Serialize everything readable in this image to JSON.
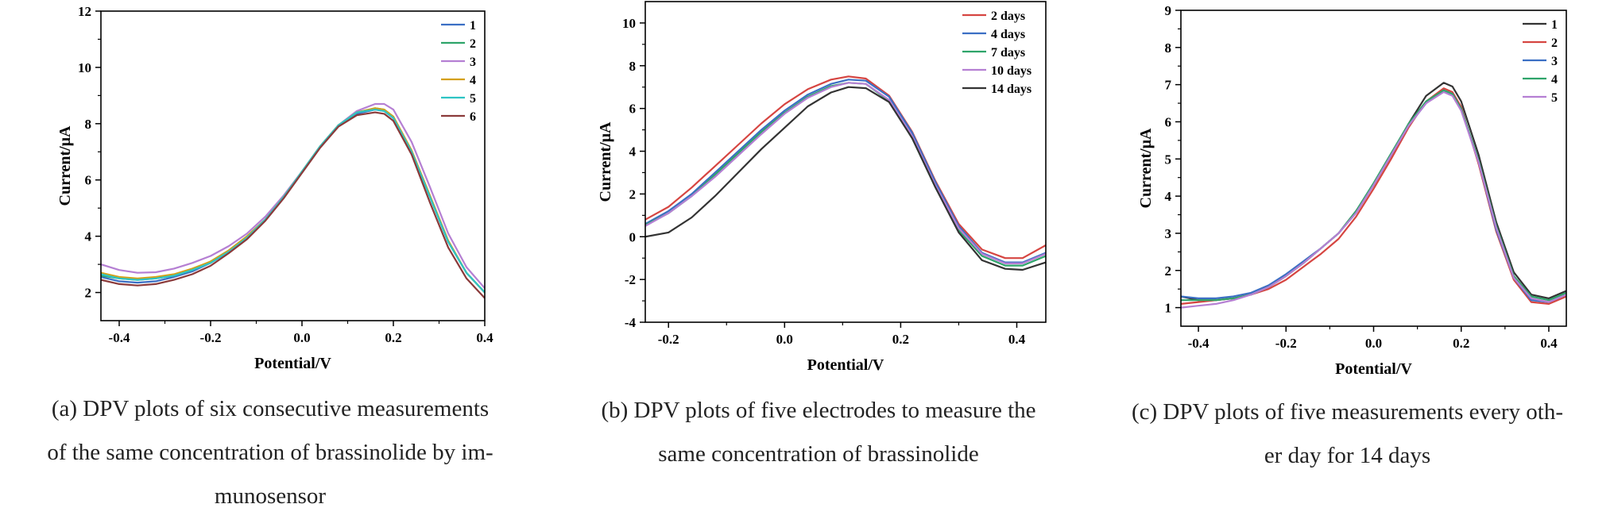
{
  "captions": [
    "(a) DPV plots of six consecutive measurements of the same concentration of brassinolide by immunosensor",
    "(b) DPV plots of five electrodes to measure the same concentration of brassinolide",
    "(c) DPV plots of five measurements every other day for 14 days"
  ],
  "caption_lines": [
    [
      "(a) DPV plots of six consecutive measurements",
      "of the same concentration of brassinolide by im-",
      "munosensor"
    ],
    [
      "(b) DPV plots of five electrodes to measure the",
      "same concentration of brassinolide"
    ],
    [
      "(c) DPV plots of five measurements every oth-",
      "er day for 14 days"
    ]
  ],
  "chart_data": [
    {
      "type": "line",
      "xlabel": "Potential/V",
      "ylabel": "Current/μA",
      "xlim": [
        -0.44,
        0.4
      ],
      "ylim": [
        1,
        12
      ],
      "xticks": [
        -0.4,
        -0.2,
        0.0,
        0.2,
        0.4
      ],
      "xtick_labels": [
        "-0.4",
        "-0.2",
        "0.0",
        "0.2",
        "0.4"
      ],
      "yticks": [
        2,
        4,
        6,
        8,
        10,
        12
      ],
      "ytick_labels": [
        "2",
        "4",
        "6",
        "8",
        "10",
        "12"
      ],
      "legend_position": "top-right",
      "x": [
        -0.44,
        -0.4,
        -0.36,
        -0.32,
        -0.28,
        -0.24,
        -0.2,
        -0.16,
        -0.12,
        -0.08,
        -0.04,
        0.0,
        0.04,
        0.08,
        0.12,
        0.16,
        0.18,
        0.2,
        0.24,
        0.28,
        0.32,
        0.36,
        0.4
      ],
      "series": [
        {
          "name": "1",
          "color": "#3b6fc4",
          "values": [
            2.55,
            2.4,
            2.35,
            2.4,
            2.55,
            2.75,
            3.05,
            3.45,
            3.95,
            4.6,
            5.4,
            6.3,
            7.2,
            7.95,
            8.35,
            8.5,
            8.45,
            8.2,
            7.0,
            5.4,
            3.8,
            2.7,
            2.0
          ]
        },
        {
          "name": "2",
          "color": "#2ea46a",
          "values": [
            2.6,
            2.5,
            2.45,
            2.5,
            2.6,
            2.8,
            3.1,
            3.5,
            4.0,
            4.6,
            5.4,
            6.3,
            7.2,
            7.95,
            8.4,
            8.55,
            8.5,
            8.25,
            7.0,
            5.4,
            3.8,
            2.7,
            2.0
          ]
        },
        {
          "name": "3",
          "color": "#b57fd3",
          "values": [
            3.0,
            2.8,
            2.7,
            2.72,
            2.85,
            3.05,
            3.3,
            3.65,
            4.1,
            4.7,
            5.45,
            6.3,
            7.2,
            7.95,
            8.45,
            8.7,
            8.7,
            8.5,
            7.35,
            5.75,
            4.1,
            2.9,
            2.15
          ]
        },
        {
          "name": "4",
          "color": "#d4a017",
          "values": [
            2.7,
            2.55,
            2.5,
            2.55,
            2.65,
            2.85,
            3.1,
            3.5,
            4.0,
            4.6,
            5.4,
            6.3,
            7.2,
            7.95,
            8.4,
            8.55,
            8.5,
            8.25,
            7.05,
            5.45,
            3.85,
            2.7,
            2.0
          ]
        },
        {
          "name": "5",
          "color": "#2ec4c4",
          "values": [
            2.65,
            2.5,
            2.45,
            2.5,
            2.6,
            2.8,
            3.05,
            3.45,
            3.95,
            4.6,
            5.4,
            6.3,
            7.2,
            7.95,
            8.4,
            8.5,
            8.45,
            8.2,
            7.0,
            5.4,
            3.8,
            2.7,
            2.0
          ]
        },
        {
          "name": "6",
          "color": "#8b3a3a",
          "values": [
            2.45,
            2.3,
            2.25,
            2.3,
            2.45,
            2.65,
            2.95,
            3.4,
            3.9,
            4.55,
            5.35,
            6.25,
            7.15,
            7.9,
            8.3,
            8.4,
            8.35,
            8.1,
            6.9,
            5.2,
            3.6,
            2.5,
            1.8
          ]
        }
      ]
    },
    {
      "type": "line",
      "xlabel": "Potential/V",
      "ylabel": "Current/μA",
      "xlim": [
        -0.24,
        0.45
      ],
      "ylim": [
        -4,
        11
      ],
      "xticks": [
        -0.2,
        0.0,
        0.2,
        0.4
      ],
      "xtick_labels": [
        "-0.2",
        "0.0",
        "0.2",
        "0.4"
      ],
      "yticks": [
        -4,
        -2,
        0,
        2,
        4,
        6,
        8,
        10
      ],
      "ytick_labels": [
        "-4",
        "-2",
        "0",
        "2",
        "4",
        "6",
        "8",
        "10"
      ],
      "legend_position": "top-right",
      "x": [
        -0.24,
        -0.2,
        -0.16,
        -0.12,
        -0.08,
        -0.04,
        0.0,
        0.04,
        0.08,
        0.11,
        0.14,
        0.18,
        0.22,
        0.26,
        0.3,
        0.34,
        0.38,
        0.41,
        0.45
      ],
      "series": [
        {
          "name": "2 days",
          "color": "#d64541",
          "values": [
            0.8,
            1.4,
            2.3,
            3.3,
            4.3,
            5.3,
            6.2,
            6.9,
            7.35,
            7.5,
            7.4,
            6.6,
            4.9,
            2.6,
            0.6,
            -0.6,
            -1.0,
            -1.0,
            -0.4
          ]
        },
        {
          "name": "4 days",
          "color": "#3b6fc4",
          "values": [
            0.6,
            1.2,
            2.0,
            3.0,
            4.0,
            5.0,
            5.9,
            6.65,
            7.15,
            7.35,
            7.3,
            6.55,
            4.85,
            2.55,
            0.5,
            -0.75,
            -1.2,
            -1.2,
            -0.75
          ]
        },
        {
          "name": "7 days",
          "color": "#2ea46a",
          "values": [
            0.55,
            1.1,
            1.9,
            2.9,
            3.9,
            4.9,
            5.8,
            6.55,
            7.05,
            7.2,
            7.15,
            6.35,
            4.6,
            2.3,
            0.3,
            -0.9,
            -1.35,
            -1.35,
            -0.9
          ]
        },
        {
          "name": "10 days",
          "color": "#b57fd3",
          "values": [
            0.5,
            1.1,
            1.9,
            2.8,
            3.8,
            4.8,
            5.75,
            6.5,
            7.0,
            7.2,
            7.15,
            6.4,
            4.7,
            2.4,
            0.4,
            -0.8,
            -1.25,
            -1.25,
            -0.8
          ]
        },
        {
          "name": "14 days",
          "color": "#333333",
          "values": [
            0.0,
            0.2,
            0.9,
            1.9,
            3.0,
            4.1,
            5.1,
            6.1,
            6.75,
            7.0,
            6.95,
            6.3,
            4.6,
            2.3,
            0.2,
            -1.1,
            -1.5,
            -1.55,
            -1.2
          ]
        }
      ]
    },
    {
      "type": "line",
      "xlabel": "Potential/V",
      "ylabel": "Current/μA",
      "xlim": [
        -0.44,
        0.44
      ],
      "ylim": [
        0.5,
        9
      ],
      "xticks": [
        -0.4,
        -0.2,
        0.0,
        0.2,
        0.4
      ],
      "xtick_labels": [
        "-0.4",
        "-0.2",
        "0.0",
        "0.2",
        "0.4"
      ],
      "yticks": [
        1,
        2,
        3,
        4,
        5,
        6,
        7,
        8,
        9
      ],
      "ytick_labels": [
        "1",
        "2",
        "3",
        "4",
        "5",
        "6",
        "7",
        "8",
        "9"
      ],
      "legend_position": "top-right",
      "x": [
        -0.44,
        -0.4,
        -0.36,
        -0.32,
        -0.28,
        -0.24,
        -0.2,
        -0.16,
        -0.12,
        -0.08,
        -0.04,
        0.0,
        0.04,
        0.08,
        0.12,
        0.16,
        0.18,
        0.2,
        0.24,
        0.28,
        0.32,
        0.36,
        0.4,
        0.44
      ],
      "series": [
        {
          "name": "1",
          "color": "#333333",
          "values": [
            1.3,
            1.2,
            1.2,
            1.25,
            1.35,
            1.55,
            1.85,
            2.2,
            2.6,
            3.0,
            3.6,
            4.3,
            5.1,
            5.95,
            6.7,
            7.05,
            6.95,
            6.55,
            5.1,
            3.3,
            1.95,
            1.35,
            1.25,
            1.45
          ]
        },
        {
          "name": "2",
          "color": "#d64541",
          "values": [
            1.1,
            1.15,
            1.2,
            1.25,
            1.35,
            1.5,
            1.75,
            2.1,
            2.45,
            2.85,
            3.45,
            4.2,
            5.0,
            5.85,
            6.55,
            6.9,
            6.8,
            6.4,
            4.85,
            3.05,
            1.75,
            1.15,
            1.1,
            1.3
          ]
        },
        {
          "name": "3",
          "color": "#3b6fc4",
          "values": [
            1.3,
            1.25,
            1.25,
            1.3,
            1.4,
            1.6,
            1.9,
            2.25,
            2.6,
            3.0,
            3.55,
            4.3,
            5.1,
            5.9,
            6.5,
            6.85,
            6.75,
            6.35,
            4.9,
            3.1,
            1.8,
            1.2,
            1.15,
            1.35
          ]
        },
        {
          "name": "4",
          "color": "#2ea46a",
          "values": [
            1.2,
            1.2,
            1.2,
            1.25,
            1.35,
            1.55,
            1.85,
            2.2,
            2.6,
            3.0,
            3.6,
            4.35,
            5.15,
            5.95,
            6.55,
            6.85,
            6.75,
            6.35,
            4.95,
            3.2,
            1.85,
            1.3,
            1.2,
            1.4
          ]
        },
        {
          "name": "5",
          "color": "#b57fd3",
          "values": [
            1.0,
            1.05,
            1.1,
            1.2,
            1.35,
            1.55,
            1.85,
            2.2,
            2.6,
            3.0,
            3.55,
            4.3,
            5.1,
            5.9,
            6.5,
            6.8,
            6.7,
            6.3,
            4.9,
            3.15,
            1.8,
            1.25,
            1.15,
            1.35
          ]
        }
      ]
    }
  ]
}
